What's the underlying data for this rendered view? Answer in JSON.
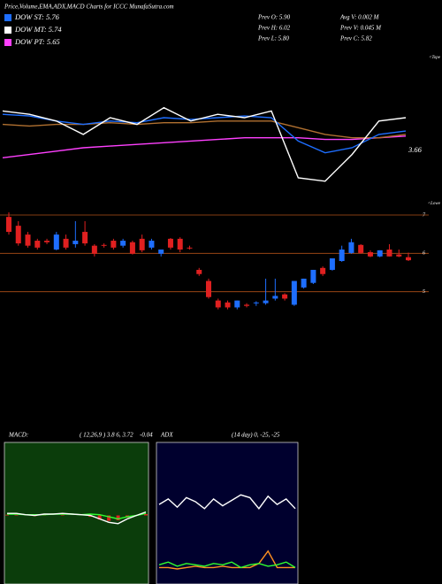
{
  "header": {
    "title": "Price,Volume,EMA,ADX,MACD Charts for ICCC MunafaSutra.com",
    "legend": [
      {
        "name": "DOW ST: 5.76",
        "color": "#1e6eff"
      },
      {
        "name": "DOW MT: 5.74",
        "color": "#ffffff"
      },
      {
        "name": "DOW PT: 5.65",
        "color": "#ff40ff"
      }
    ],
    "info": [
      "Prev O: 5.90",
      "Avg V: 0.002 M",
      "Prev H: 6.02",
      "Prev V: 0.045 M",
      "Prev L: 5.80",
      "Prev C: 5.82"
    ]
  },
  "chart_data": [
    {
      "type": "line",
      "annotation": "3.66",
      "corner_label": "<Tope",
      "ylim": [
        3,
        7.5
      ],
      "series": [
        {
          "color": "#ff40ff",
          "values": [
            4.5,
            4.6,
            4.7,
            4.8,
            4.85,
            4.9,
            4.95,
            5.0,
            5.05,
            5.1,
            5.1,
            5.1,
            5.05,
            5.05,
            5.1,
            5.15
          ]
        },
        {
          "color": "#b07030",
          "values": [
            5.5,
            5.45,
            5.5,
            5.5,
            5.55,
            5.5,
            5.55,
            5.55,
            5.6,
            5.6,
            5.6,
            5.4,
            5.2,
            5.1,
            5.1,
            5.2
          ]
        },
        {
          "color": "#1e6eff",
          "values": [
            5.8,
            5.75,
            5.6,
            5.5,
            5.6,
            5.55,
            5.7,
            5.65,
            5.7,
            5.75,
            5.7,
            5.0,
            4.65,
            4.8,
            5.2,
            5.3
          ]
        },
        {
          "color": "#ffffff",
          "values": [
            5.9,
            5.8,
            5.6,
            5.2,
            5.7,
            5.5,
            6.0,
            5.6,
            5.8,
            5.7,
            5.9,
            3.9,
            3.8,
            4.6,
            5.6,
            5.7
          ]
        }
      ]
    },
    {
      "type": "candlestick",
      "corner_label": "<Lowe",
      "ylim": [
        4.3,
        7.3
      ],
      "yticks": [
        5,
        6,
        7
      ],
      "grid": true,
      "up_color": "#1e6eff",
      "down_color": "#e02020",
      "open": [
        6.95,
        6.72,
        6.49,
        6.33,
        6.33,
        6.1,
        6.38,
        6.24,
        6.56,
        6.2,
        6.22,
        6.33,
        6.2,
        6.29,
        6.38,
        6.15,
        5.99,
        6.38,
        6.38,
        6.15,
        5.57,
        5.28,
        4.77,
        4.72,
        4.59,
        4.66,
        4.7,
        4.7,
        4.82,
        4.93,
        4.66,
        5.11,
        5.23,
        5.62,
        5.57,
        5.8,
        6.01,
        6.22,
        6.03,
        5.92,
        6.1,
        5.97,
        5.9
      ],
      "high": [
        7.07,
        6.84,
        6.56,
        6.38,
        6.38,
        6.56,
        6.49,
        6.84,
        6.84,
        6.24,
        6.26,
        6.38,
        6.38,
        6.33,
        6.49,
        6.38,
        6.1,
        6.4,
        6.42,
        6.2,
        5.62,
        5.34,
        4.82,
        4.77,
        4.77,
        4.7,
        4.75,
        5.34,
        5.34,
        4.96,
        5.28,
        5.34,
        5.57,
        5.66,
        5.87,
        6.2,
        6.38,
        6.24,
        6.08,
        6.08,
        6.24,
        6.1,
        6.02
      ],
      "low": [
        6.49,
        6.2,
        6.15,
        6.1,
        6.24,
        6.08,
        6.1,
        6.15,
        6.2,
        5.92,
        6.15,
        6.1,
        6.15,
        5.97,
        6.03,
        6.1,
        5.92,
        6.1,
        6.03,
        6.1,
        5.41,
        4.82,
        4.54,
        4.54,
        4.54,
        4.59,
        4.63,
        4.66,
        4.77,
        4.77,
        4.63,
        5.08,
        5.2,
        5.41,
        5.55,
        5.78,
        5.99,
        5.99,
        5.9,
        5.9,
        5.92,
        5.9,
        5.8
      ],
      "close": [
        6.56,
        6.26,
        6.2,
        6.15,
        6.29,
        6.49,
        6.15,
        6.33,
        6.26,
        5.99,
        6.2,
        6.15,
        6.33,
        5.99,
        6.08,
        6.33,
        6.1,
        6.15,
        6.1,
        6.13,
        5.46,
        4.86,
        4.59,
        4.59,
        4.77,
        4.63,
        4.72,
        4.77,
        4.89,
        4.82,
        5.28,
        5.34,
        5.57,
        5.46,
        5.87,
        6.1,
        6.29,
        6.01,
        5.92,
        6.08,
        5.92,
        5.92,
        5.82
      ]
    },
    {
      "type": "line",
      "title": "MACD:",
      "subtitle": "( 12,26,9 ) 3.8 6, 3.72",
      "annotation": "-0.04",
      "ylim": [
        -1,
        1
      ],
      "background": "#0b3d0b",
      "series": [
        {
          "color": "#e02020",
          "bars": true,
          "values": [
            0.01,
            0.01,
            0.0,
            -0.01,
            0.01,
            0.0,
            0.01,
            0.0,
            0.0,
            -0.02,
            -0.06,
            -0.08,
            -0.07,
            -0.03,
            0.0,
            0.02
          ]
        },
        {
          "color": "#30ff30",
          "values": [
            0.02,
            0.02,
            0.01,
            0.01,
            0.01,
            0.02,
            0.02,
            0.02,
            0.01,
            0.02,
            0.01,
            -0.02,
            -0.05,
            -0.02,
            0.0,
            0.03
          ]
        },
        {
          "color": "#ffffff",
          "values": [
            0.03,
            0.03,
            0.01,
            0.0,
            0.02,
            0.02,
            0.03,
            0.02,
            0.01,
            0.0,
            -0.05,
            -0.1,
            -0.12,
            -0.05,
            0.0,
            0.05
          ]
        }
      ]
    },
    {
      "type": "line",
      "title": "ADX",
      "subtitle": "(14 day) 0, -25, -25",
      "ylim": [
        0,
        100
      ],
      "background": "#00002e",
      "series": [
        {
          "color": "#ff9020",
          "values": [
            12,
            12,
            11,
            12,
            13,
            12,
            12,
            13,
            12,
            12,
            12,
            15,
            24,
            12,
            12,
            12
          ]
        },
        {
          "color": "#30ff30",
          "values": [
            14,
            16,
            13,
            15,
            14,
            13,
            15,
            14,
            16,
            12,
            14,
            15,
            13,
            14,
            16,
            12
          ]
        },
        {
          "color": "#ffffff",
          "values": [
            58,
            62,
            56,
            63,
            60,
            55,
            62,
            57,
            61,
            65,
            63,
            55,
            64,
            58,
            62,
            55
          ]
        }
      ]
    }
  ]
}
